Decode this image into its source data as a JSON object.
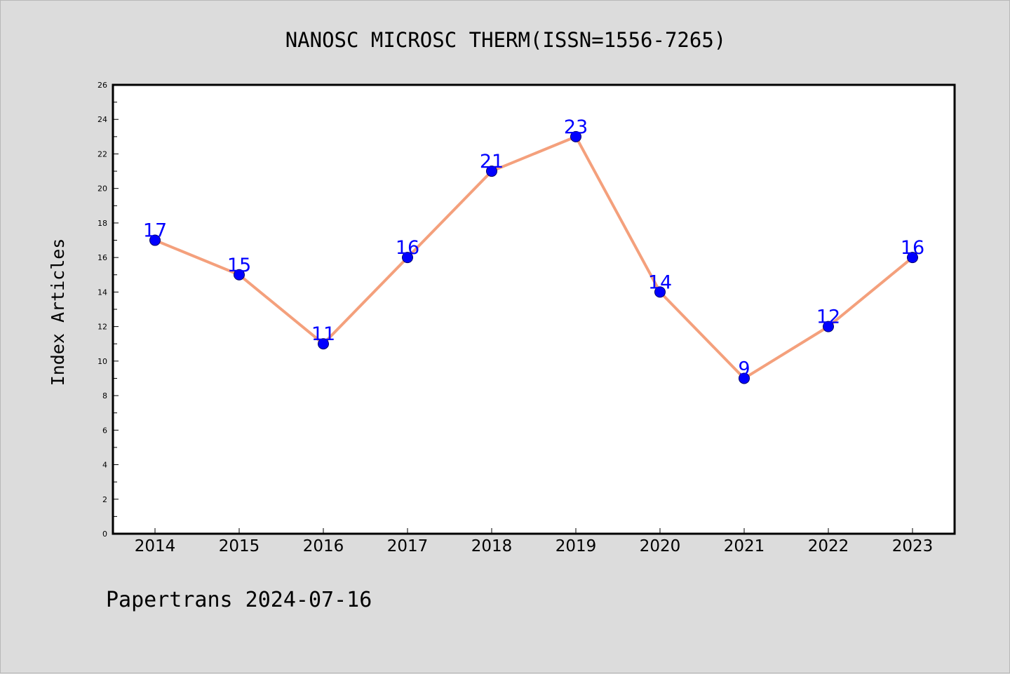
{
  "footer": {
    "text": "Papertrans 2024-07-16"
  },
  "colors": {
    "background": "#dcdcdc",
    "plot_bg": "#ffffff",
    "line": "#f4a07c",
    "marker": "#0000ff",
    "label": "#0000ff"
  },
  "chart_data": {
    "type": "line",
    "title": "NANOSC MICROSC THERM(ISSN=1556-7265)",
    "xlabel": "",
    "ylabel": "Index Articles",
    "categories": [
      "2014",
      "2015",
      "2016",
      "2017",
      "2018",
      "2019",
      "2020",
      "2021",
      "2022",
      "2023"
    ],
    "series": [
      {
        "values": [
          17,
          15,
          11,
          16,
          21,
          23,
          14,
          9,
          12,
          16
        ]
      }
    ],
    "ylim": [
      0,
      26
    ],
    "yticks": [
      "0",
      "2",
      "4",
      "6",
      "8",
      "10",
      "12",
      "14",
      "16",
      "18",
      "20",
      "22",
      "24",
      "26"
    ],
    "data_labels": true,
    "grid": false,
    "legend": "none"
  }
}
